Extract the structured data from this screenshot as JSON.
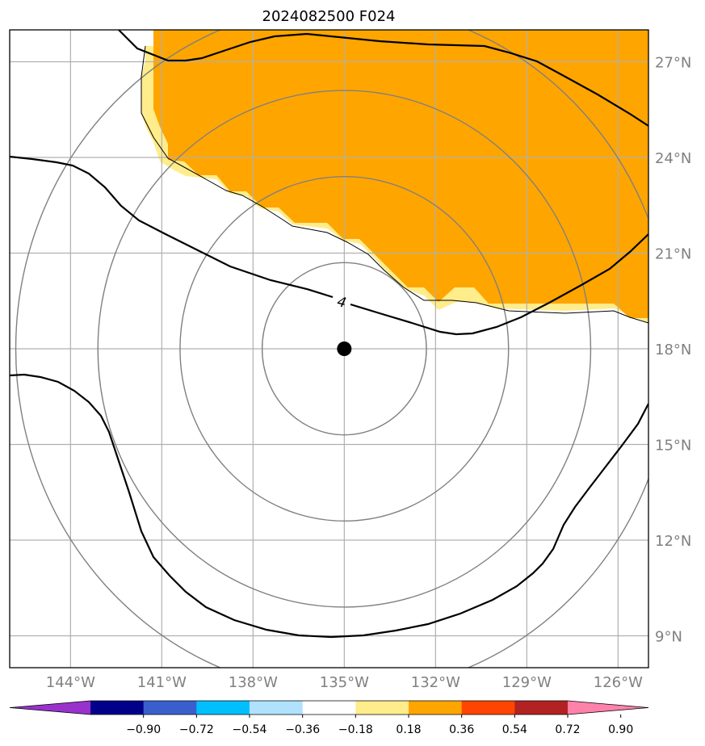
{
  "title": "2024082500 F024",
  "map": {
    "projection": "lat-lon",
    "lon_range": [
      -146,
      -125
    ],
    "lat_range": [
      8,
      28
    ],
    "gridlines": true,
    "lon_ticks": [
      {
        "value": -144,
        "label": "144°W"
      },
      {
        "value": -141,
        "label": "141°W"
      },
      {
        "value": -138,
        "label": "138°W"
      },
      {
        "value": -135,
        "label": "135°W"
      },
      {
        "value": -132,
        "label": "132°W"
      },
      {
        "value": -129,
        "label": "129°W"
      },
      {
        "value": -126,
        "label": "126°W"
      }
    ],
    "lat_ticks": [
      {
        "value": 9,
        "label": "9°N"
      },
      {
        "value": 12,
        "label": "12°N"
      },
      {
        "value": 15,
        "label": "15°N"
      },
      {
        "value": 18,
        "label": "18°N"
      },
      {
        "value": 21,
        "label": "21°N"
      },
      {
        "value": 24,
        "label": "24°N"
      },
      {
        "value": 27,
        "label": "27°N"
      }
    ],
    "center": {
      "lon": -135,
      "lat": 18
    },
    "range_rings_deg": [
      2.7,
      5.4,
      8.1,
      10.8
    ],
    "contour_label": "4"
  },
  "colorbar": {
    "colors": [
      "#9932cc",
      "#00008b",
      "#3a5fcd",
      "#00bfff",
      "#b0e2ff",
      "#ffffff",
      "#ffec8b",
      "#ffa500",
      "#ff4500",
      "#b22222",
      "#ff82ab"
    ],
    "ticks": [
      "−0.90",
      "−0.72",
      "−0.54",
      "−0.36",
      "−0.18",
      "0.18",
      "0.36",
      "0.54",
      "0.72",
      "0.90"
    ]
  },
  "fill_colors": {
    "light": "#ffec8b",
    "main": "#ffa500"
  }
}
